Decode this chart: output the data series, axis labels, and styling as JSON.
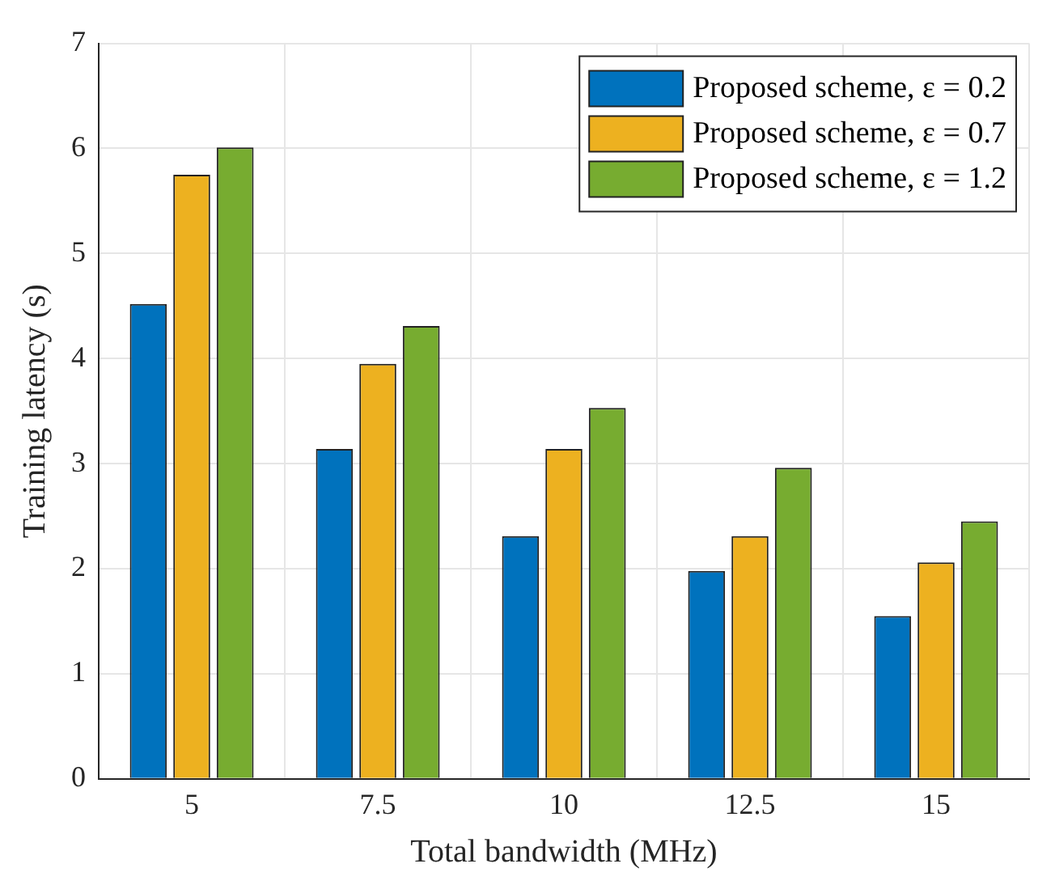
{
  "chart_data": {
    "type": "bar",
    "xlabel": "Total bandwidth (MHz)",
    "ylabel": "Training latency (s)",
    "categories": [
      "5",
      "7.5",
      "10",
      "12.5",
      "15"
    ],
    "series": [
      {
        "name": "Proposed scheme, ε = 0.2",
        "color": "#0072bd",
        "values": [
          4.52,
          3.14,
          2.31,
          1.98,
          1.55
        ]
      },
      {
        "name": "Proposed scheme, ε = 0.7",
        "color": "#edb120",
        "values": [
          5.75,
          3.95,
          3.14,
          2.31,
          2.06
        ]
      },
      {
        "name": "Proposed scheme, ε = 1.2",
        "color": "#77ac30",
        "values": [
          6.01,
          4.31,
          3.53,
          2.96,
          2.45
        ]
      }
    ],
    "ylim": [
      0,
      7
    ],
    "yticks": [
      0,
      1,
      2,
      3,
      4,
      5,
      6,
      7
    ],
    "grid": true,
    "legend": "top right"
  }
}
